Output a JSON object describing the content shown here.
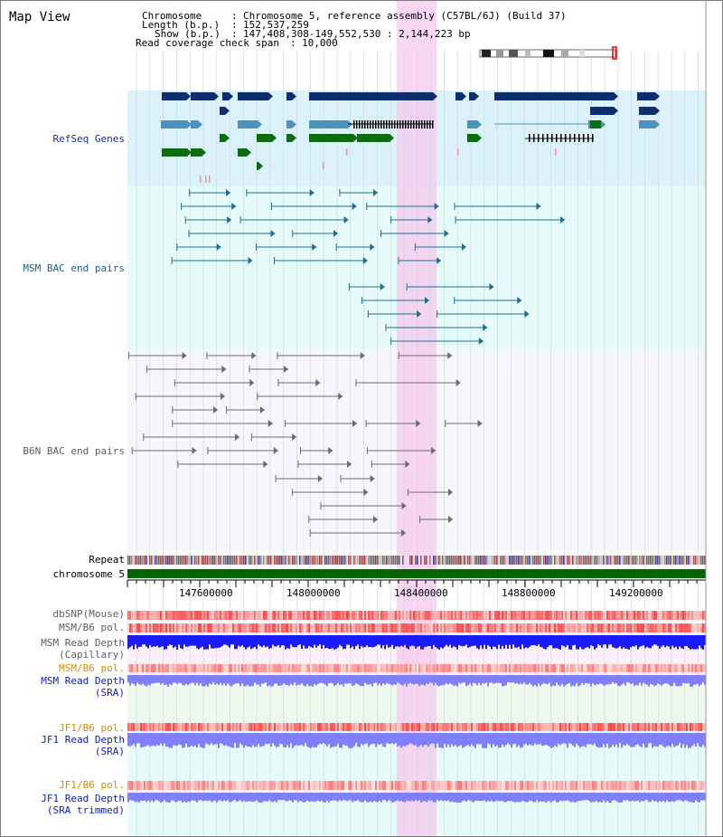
{
  "app": {
    "title": "Map View"
  },
  "header": {
    "chromosome_key": "Chromosome",
    "chromosome_value": "Chromosome 5, reference assembly (C57BL/6J) (Build 37)",
    "length_key": "Length (b.p.)",
    "length_value": "152,537,259",
    "show_key": "Show (b.p.)",
    "show_value": "147,408,308-149,552,530 : 2,144,223 bp",
    "coverage_key": "Read coverage check span",
    "coverage_value": "10,000"
  },
  "tracks": {
    "refseq": "RefSeq Genes",
    "msm_bac": "MSM BAC end pairs",
    "b6n_bac": "B6N BAC end pairs",
    "repeat": "Repeat",
    "chromosome": "chromosome 5",
    "dbsnp": "dbSNP(Mouse)",
    "msm_b6_pol": "MSM/B6 pol.",
    "msm_depth_cap_1": "MSM Read Depth",
    "msm_depth_cap_2": "(Capillary)",
    "msm_b6_pol2": "MSM/B6 pol.",
    "msm_depth_sra_1": "MSM Read Depth",
    "msm_depth_sra_2": "(SRA)",
    "jf1_b6_pol": "JF1/B6 pol.",
    "jf1_depth_sra_1": "JF1 Read Depth",
    "jf1_depth_sra_2": "(SRA)",
    "jf1_b6_pol2": "JF1/B6 pol.",
    "jf1_depth_trim_1": "JF1 Read Depth",
    "jf1_depth_trim_2": "(SRA trimmed)"
  },
  "axis": {
    "ticks": [
      "147600000",
      "148000000",
      "148400000",
      "148800000",
      "149200000"
    ]
  },
  "colors": {
    "refseq_bg": "#dcf2fb",
    "msm_bg": "#e8fbfb",
    "b6n_bg": "#f7f7fb",
    "highlight": "#f7c8ef",
    "gene_dark": "#0d2d6e",
    "gene_mid": "#4b93bd",
    "gene_green": "#0c6c10",
    "msm_line": "#1c6f93",
    "b6n_line": "#6c6c6c",
    "chromosome_bar": "#006600",
    "snp_red": "#ee3333",
    "depth_blue": "#1a1aff",
    "sra_blue": "#8080ff"
  }
}
